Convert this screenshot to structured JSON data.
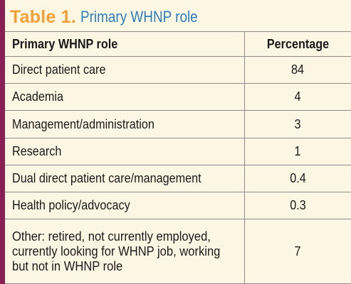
{
  "table": {
    "label": "Table 1.",
    "title": "Primary WHNP role",
    "columns": [
      "Primary WHNP role",
      "Percentage"
    ],
    "rows": [
      {
        "role": "Direct patient care",
        "percentage": "84"
      },
      {
        "role": "Academia",
        "percentage": "4"
      },
      {
        "role": "Management/administration",
        "percentage": "3"
      },
      {
        "role": "Research",
        "percentage": "1"
      },
      {
        "role": "Dual direct patient care/management",
        "percentage": "0.4"
      },
      {
        "role": "Health policy/advocacy",
        "percentage": "0.3"
      },
      {
        "role": "Other: retired, not currently employed, currently looking for WHNP job, working but not in WHNP role",
        "percentage": "7"
      }
    ]
  },
  "colors": {
    "accent_bar": "#8a1f55",
    "label": "#f0a037",
    "title": "#2b7fb8",
    "background": "#fdf6e3"
  }
}
